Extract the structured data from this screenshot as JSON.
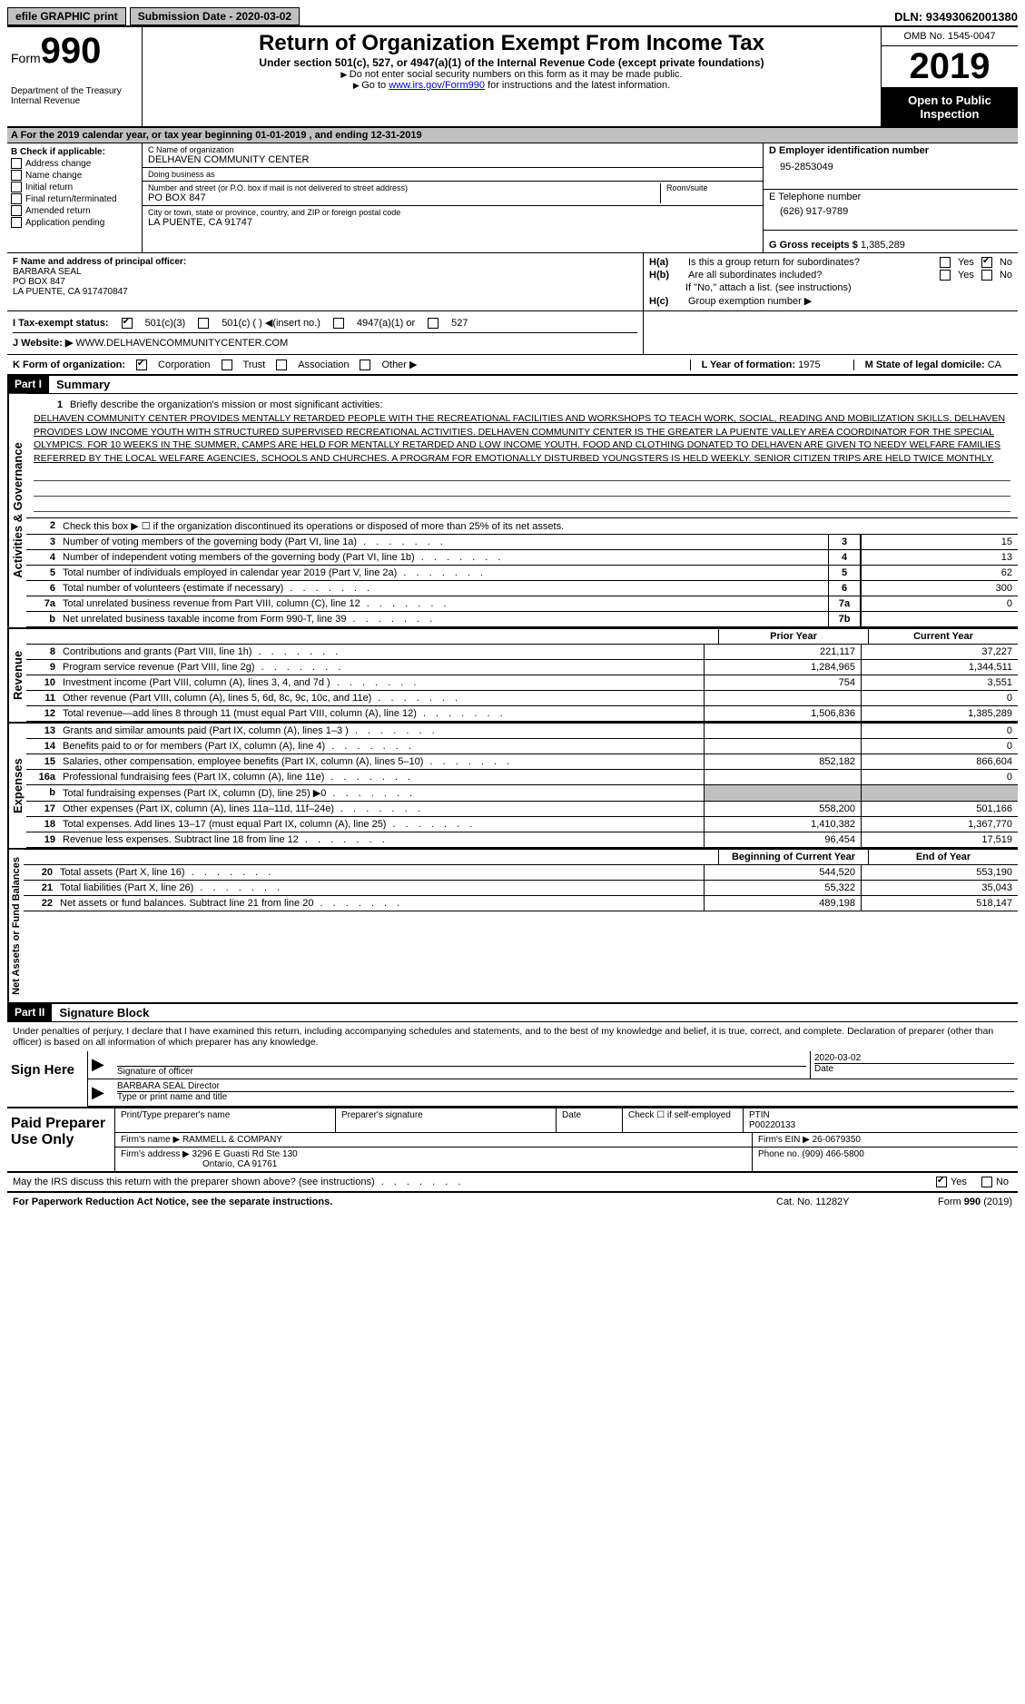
{
  "topbar": {
    "efile": "efile GRAPHIC print",
    "submission": "Submission Date - 2020-03-02",
    "dln_label": "DLN:",
    "dln": "93493062001380"
  },
  "header": {
    "form_word": "Form",
    "form_num": "990",
    "dept": "Department of the Treasury\nInternal Revenue",
    "title": "Return of Organization Exempt From Income Tax",
    "subtitle": "Under section 501(c), 527, or 4947(a)(1) of the Internal Revenue Code (except private foundations)",
    "note1": "Do not enter social security numbers on this form as it may be made public.",
    "note2_pre": "Go to ",
    "note2_link": "www.irs.gov/Form990",
    "note2_post": " for instructions and the latest information.",
    "omb": "OMB No. 1545-0047",
    "year": "2019",
    "open": "Open to Public Inspection"
  },
  "rowA": "A For the 2019 calendar year, or tax year beginning 01-01-2019   , and ending 12-31-2019",
  "boxB": {
    "title": "B Check if applicable:",
    "items": [
      "Address change",
      "Name change",
      "Initial return",
      "Final return/terminated",
      "Amended return",
      "Application pending"
    ]
  },
  "boxC": {
    "name_label": "C Name of organization",
    "name": "DELHAVEN COMMUNITY CENTER",
    "dba_label": "Doing business as",
    "dba": "",
    "street_label": "Number and street (or P.O. box if mail is not delivered to street address)",
    "street": "PO BOX 847",
    "room_label": "Room/suite",
    "city_label": "City or town, state or province, country, and ZIP or foreign postal code",
    "city": "LA PUENTE, CA  91747"
  },
  "boxD": {
    "label": "D Employer identification number",
    "val": "95-2853049"
  },
  "boxE": {
    "label": "E Telephone number",
    "val": "(626) 917-9789"
  },
  "boxG": {
    "label": "G Gross receipts $",
    "val": "1,385,289"
  },
  "boxF": {
    "label": "F  Name and address of principal officer:",
    "name": "BARBARA SEAL",
    "addr1": "PO BOX 847",
    "addr2": "LA PUENTE, CA  917470847"
  },
  "boxH": {
    "a_label": "H(a)",
    "a_text": "Is this a group return for subordinates?",
    "a_no_checked": true,
    "b_label": "H(b)",
    "b_text": "Are all subordinates included?",
    "b_note": "If \"No,\" attach a list. (see instructions)",
    "c_label": "H(c)",
    "c_text": "Group exemption number ▶"
  },
  "boxI": {
    "label": "I Tax-exempt status:",
    "opt1": "501(c)(3)",
    "opt2": "501(c) (  ) ◀(insert no.)",
    "opt3": "4947(a)(1) or",
    "opt4": "527",
    "checked": 0
  },
  "boxJ": {
    "label": "J Website: ▶",
    "val": "WWW.DELHAVENCOMMUNITYCENTER.COM"
  },
  "boxK": {
    "label": "K Form of organization:",
    "opts": [
      "Corporation",
      "Trust",
      "Association",
      "Other ▶"
    ],
    "checked": 0
  },
  "boxL": {
    "label": "L Year of formation:",
    "val": "1975"
  },
  "boxM": {
    "label": "M State of legal domicile:",
    "val": "CA"
  },
  "part1": {
    "header": "Part I",
    "title": "Summary",
    "line1_label": "1",
    "line1_desc": "Briefly describe the organization's mission or most significant activities:",
    "mission": "DELHAVEN COMMUNITY CENTER PROVIDES MENTALLY RETARDED PEOPLE WITH THE RECREATIONAL FACILITIES AND WORKSHOPS TO TEACH WORK, SOCIAL, READING AND MOBILIZATION SKILLS. DELHAVEN PROVIDES LOW INCOME YOUTH WITH STRUCTURED SUPERVISED RECREATIONAL ACTIVITIES. DELHAVEN COMMUNITY CENTER IS THE GREATER LA PUENTE VALLEY AREA COORDINATOR FOR THE SPECIAL OLYMPICS. FOR 10 WEEKS IN THE SUMMER, CAMPS ARE HELD FOR MENTALLY RETARDED AND LOW INCOME YOUTH. FOOD AND CLOTHING DONATED TO DELHAVEN ARE GIVEN TO NEEDY WELFARE FAMILIES REFERRED BY THE LOCAL WELFARE AGENCIES, SCHOOLS AND CHURCHES. A PROGRAM FOR EMOTIONALLY DISTURBED YOUNGSTERS IS HELD WEEKLY. SENIOR CITIZEN TRIPS ARE HELD TWICE MONTHLY.",
    "line2": "Check this box ▶ ☐ if the organization discontinued its operations or disposed of more than 25% of its net assets.",
    "vert_ag": "Activities & Governance",
    "vert_rev": "Revenue",
    "vert_exp": "Expenses",
    "vert_net": "Net Assets or Fund Balances",
    "lines_simple": [
      {
        "n": "3",
        "d": "Number of voting members of the governing body (Part VI, line 1a)",
        "box": "3",
        "v": "15"
      },
      {
        "n": "4",
        "d": "Number of independent voting members of the governing body (Part VI, line 1b)",
        "box": "4",
        "v": "13"
      },
      {
        "n": "5",
        "d": "Total number of individuals employed in calendar year 2019 (Part V, line 2a)",
        "box": "5",
        "v": "62"
      },
      {
        "n": "6",
        "d": "Total number of volunteers (estimate if necessary)",
        "box": "6",
        "v": "300"
      },
      {
        "n": "7a",
        "d": "Total unrelated business revenue from Part VIII, column (C), line 12",
        "box": "7a",
        "v": "0"
      },
      {
        "n": "b",
        "d": "Net unrelated business taxable income from Form 990-T, line 39",
        "box": "7b",
        "v": ""
      }
    ],
    "col_prior": "Prior Year",
    "col_current": "Current Year",
    "revenue": [
      {
        "n": "8",
        "d": "Contributions and grants (Part VIII, line 1h)",
        "p": "221,117",
        "c": "37,227"
      },
      {
        "n": "9",
        "d": "Program service revenue (Part VIII, line 2g)",
        "p": "1,284,965",
        "c": "1,344,511"
      },
      {
        "n": "10",
        "d": "Investment income (Part VIII, column (A), lines 3, 4, and 7d )",
        "p": "754",
        "c": "3,551"
      },
      {
        "n": "11",
        "d": "Other revenue (Part VIII, column (A), lines 5, 6d, 8c, 9c, 10c, and 11e)",
        "p": "",
        "c": "0"
      },
      {
        "n": "12",
        "d": "Total revenue—add lines 8 through 11 (must equal Part VIII, column (A), line 12)",
        "p": "1,506,836",
        "c": "1,385,289"
      }
    ],
    "expenses": [
      {
        "n": "13",
        "d": "Grants and similar amounts paid (Part IX, column (A), lines 1–3 )",
        "p": "",
        "c": "0"
      },
      {
        "n": "14",
        "d": "Benefits paid to or for members (Part IX, column (A), line 4)",
        "p": "",
        "c": "0"
      },
      {
        "n": "15",
        "d": "Salaries, other compensation, employee benefits (Part IX, column (A), lines 5–10)",
        "p": "852,182",
        "c": "866,604"
      },
      {
        "n": "16a",
        "d": "Professional fundraising fees (Part IX, column (A), line 11e)",
        "p": "",
        "c": "0"
      },
      {
        "n": "b",
        "d": "Total fundraising expenses (Part IX, column (D), line 25) ▶0",
        "p": "SHADE",
        "c": "SHADE"
      },
      {
        "n": "17",
        "d": "Other expenses (Part IX, column (A), lines 11a–11d, 11f–24e)",
        "p": "558,200",
        "c": "501,166"
      },
      {
        "n": "18",
        "d": "Total expenses. Add lines 13–17 (must equal Part IX, column (A), line 25)",
        "p": "1,410,382",
        "c": "1,367,770"
      },
      {
        "n": "19",
        "d": "Revenue less expenses. Subtract line 18 from line 12",
        "p": "96,454",
        "c": "17,519"
      }
    ],
    "col_begin": "Beginning of Current Year",
    "col_end": "End of Year",
    "netassets": [
      {
        "n": "20",
        "d": "Total assets (Part X, line 16)",
        "p": "544,520",
        "c": "553,190"
      },
      {
        "n": "21",
        "d": "Total liabilities (Part X, line 26)",
        "p": "55,322",
        "c": "35,043"
      },
      {
        "n": "22",
        "d": "Net assets or fund balances. Subtract line 21 from line 20",
        "p": "489,198",
        "c": "518,147"
      }
    ]
  },
  "part2": {
    "header": "Part II",
    "title": "Signature Block",
    "intro": "Under penalties of perjury, I declare that I have examined this return, including accompanying schedules and statements, and to the best of my knowledge and belief, it is true, correct, and complete. Declaration of preparer (other than officer) is based on all information of which preparer has any knowledge.",
    "sign_here": "Sign Here",
    "sig_officer": "Signature of officer",
    "sig_date": "2020-03-02",
    "date_label": "Date",
    "officer_name": "BARBARA SEAL Director",
    "officer_label": "Type or print name and title",
    "paid_prep": "Paid Preparer Use Only",
    "prep_name_label": "Print/Type preparer's name",
    "prep_sig_label": "Preparer's signature",
    "prep_date_label": "Date",
    "prep_check": "Check ☐ if self-employed",
    "ptin_label": "PTIN",
    "ptin": "P00220133",
    "firm_name_label": "Firm's name    ▶",
    "firm_name": "RAMMELL & COMPANY",
    "firm_ein_label": "Firm's EIN ▶",
    "firm_ein": "26-0679350",
    "firm_addr_label": "Firm's address ▶",
    "firm_addr1": "3296 E Guasti Rd Ste 130",
    "firm_addr2": "Ontario, CA  91761",
    "phone_label": "Phone no.",
    "phone": "(909) 466-5800",
    "discuss": "May the IRS discuss this return with the preparer shown above? (see instructions)",
    "yes": "Yes",
    "no": "No"
  },
  "footer": {
    "left": "For Paperwork Reduction Act Notice, see the separate instructions.",
    "mid": "Cat. No. 11282Y",
    "right": "Form 990 (2019)"
  }
}
